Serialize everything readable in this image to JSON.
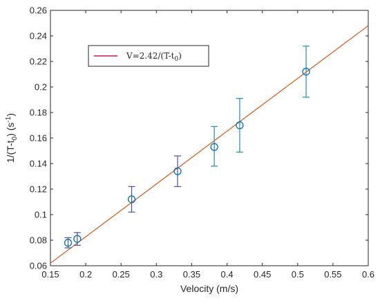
{
  "chart_data": {
    "type": "scatter",
    "xlabel": "Velocity (m/s)",
    "ylabel_base": "1/(T-t",
    "ylabel_sub": "0",
    "ylabel_tail": ") (s",
    "ylabel_sup": "-1",
    "ylabel_end": ")",
    "xlim": [
      0.15,
      0.6
    ],
    "ylim": [
      0.06,
      0.26
    ],
    "x_ticks": [
      0.15,
      0.2,
      0.25,
      0.3,
      0.35,
      0.4,
      0.45,
      0.5,
      0.55,
      0.6
    ],
    "x_tick_labels": [
      "0.15",
      "0.2",
      "0.25",
      "0.3",
      "0.35",
      "0.4",
      "0.45",
      "0.5",
      "0.55",
      "0.6"
    ],
    "y_ticks": [
      0.06,
      0.08,
      0.1,
      0.12,
      0.14,
      0.16,
      0.18,
      0.2,
      0.22,
      0.24,
      0.26
    ],
    "y_tick_labels": [
      "0.06",
      "0.08",
      "0.1",
      "0.12",
      "0.14",
      "0.16",
      "0.18",
      "0.2",
      "0.22",
      "0.24",
      "0.26"
    ],
    "grid": false,
    "legend": {
      "placement": "top-left",
      "label_main": "V=2.42/(T-t",
      "label_sub": "0",
      "label_end": ")",
      "line_color": "#c8174b"
    },
    "fit_line": {
      "start": [
        0.15,
        0.062
      ],
      "end": [
        0.6,
        0.248
      ],
      "color": "#d95319"
    },
    "points": [
      {
        "x": 0.175,
        "y": 0.078,
        "err_low": 0.074,
        "err_high": 0.082
      },
      {
        "x": 0.188,
        "y": 0.081,
        "err_low": 0.076,
        "err_high": 0.086
      },
      {
        "x": 0.265,
        "y": 0.112,
        "err_low": 0.102,
        "err_high": 0.122
      },
      {
        "x": 0.33,
        "y": 0.134,
        "err_low": 0.122,
        "err_high": 0.146
      },
      {
        "x": 0.382,
        "y": 0.153,
        "err_low": 0.138,
        "err_high": 0.169
      },
      {
        "x": 0.418,
        "y": 0.17,
        "err_low": 0.149,
        "err_high": 0.191
      },
      {
        "x": 0.512,
        "y": 0.212,
        "err_low": 0.192,
        "err_high": 0.232
      }
    ],
    "marker_color": "#0072bd",
    "error_colors": [
      "#4b4fa0",
      "#4b4fa0",
      "#4b4fa0",
      "#4b4fa0",
      "#1f8ab8",
      "#1f8ab8",
      "#1f8ab8"
    ]
  }
}
